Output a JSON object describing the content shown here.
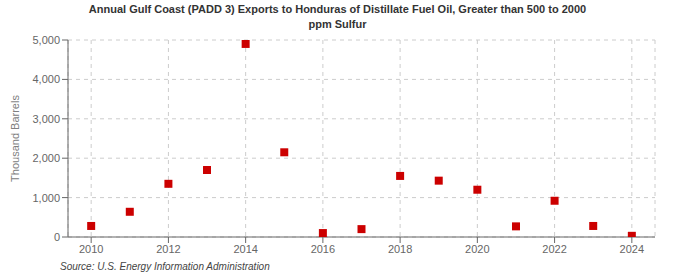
{
  "chart_data": {
    "type": "scatter",
    "title": "Annual Gulf Coast (PADD 3) Exports to Honduras of Distillate Fuel Oil, Greater than 500 to 2000\nppm Sulfur",
    "ylabel": "Thousand Barrels",
    "source": "Source: U.S. Energy Information Administration",
    "x": [
      2010,
      2011,
      2012,
      2013,
      2014,
      2015,
      2016,
      2017,
      2018,
      2019,
      2020,
      2021,
      2022,
      2023,
      2024
    ],
    "values": [
      280,
      640,
      1350,
      1700,
      4900,
      2150,
      100,
      200,
      1550,
      1430,
      1200,
      270,
      920,
      280,
      30
    ],
    "color": "#cc0000",
    "marker": "square",
    "xlim": [
      2009.4,
      2024.6
    ],
    "xticks": [
      2010,
      2012,
      2014,
      2016,
      2018,
      2020,
      2022,
      2024
    ],
    "ylim": [
      0,
      5000
    ],
    "yticks": [
      0,
      {
        "value": 1000,
        "label": "1,000"
      },
      {
        "value": 2000,
        "label": "2,000"
      },
      {
        "value": 3000,
        "label": "3,000"
      },
      {
        "value": 4000,
        "label": "4,000"
      },
      {
        "value": 5000,
        "label": "5,000"
      }
    ],
    "grid": true
  }
}
